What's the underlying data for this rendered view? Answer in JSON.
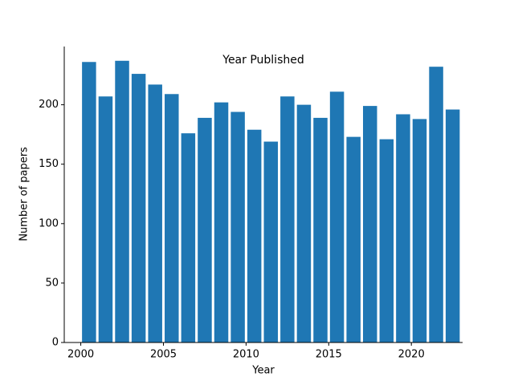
{
  "chart_data": {
    "type": "histogram",
    "title": "Year Published",
    "x_label": "Year",
    "y_label": "Number of papers",
    "bins": [
      2000,
      2001,
      2002,
      2003,
      2004,
      2005,
      2006,
      2007,
      2008,
      2009,
      2010,
      2011,
      2012,
      2013,
      2014,
      2015,
      2016,
      2017,
      2018,
      2019,
      2020,
      2021,
      2022,
      2023
    ],
    "values": [
      236,
      207,
      237,
      226,
      217,
      209,
      176,
      189,
      202,
      194,
      179,
      169,
      207,
      200,
      189,
      211,
      173,
      199,
      171,
      192,
      188,
      232,
      196
    ],
    "color": "#1f77b4",
    "xlim": [
      1999,
      2023.1
    ],
    "xticks": [
      2000,
      2005,
      2010,
      2015,
      2020
    ],
    "ylim": [
      0,
      249
    ],
    "yticks": [
      0,
      50,
      100,
      150,
      200
    ]
  }
}
